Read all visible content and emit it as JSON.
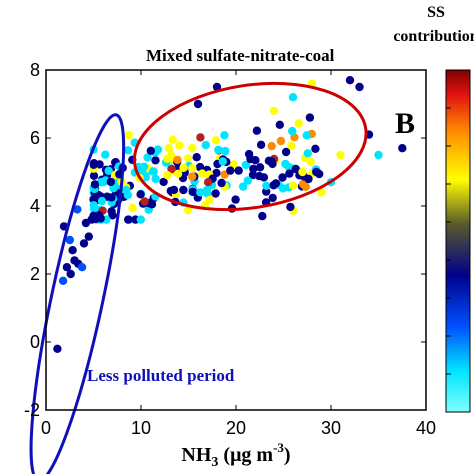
{
  "chart_data": {
    "type": "scatter",
    "panel_label": "B",
    "colorbar_title": [
      "SS",
      "contribution"
    ],
    "xlabel_main": "NH",
    "xlabel_sub": "3",
    "xlabel_unit": " (μg m",
    "xlabel_sup": "-3",
    "xlabel_close": ")",
    "xlim": [
      0,
      40
    ],
    "ylim": [
      -2,
      8
    ],
    "xticks": [
      0,
      10,
      20,
      30,
      40
    ],
    "yticks": [
      -2,
      0,
      2,
      4,
      6,
      8
    ],
    "annotations": {
      "mixed": "Mixed sulfate-nitrate-coal",
      "less": "Less polluted period"
    },
    "ellipses": [
      {
        "name": "mixed",
        "cx": 21.5,
        "cy": 5.75,
        "rx": 12.3,
        "ry": 1.8,
        "rotate_deg": -9,
        "color": "#cc0000"
      },
      {
        "name": "less",
        "cx": 3.3,
        "cy": 1.3,
        "rx": 2.7,
        "ry": 5.5,
        "rotate_deg": 12,
        "color": "#1010bb"
      }
    ],
    "colormap": [
      "#00e5ff",
      "#00008b",
      "#ffff00",
      "#ff8c00",
      "#b22222"
    ]
  }
}
